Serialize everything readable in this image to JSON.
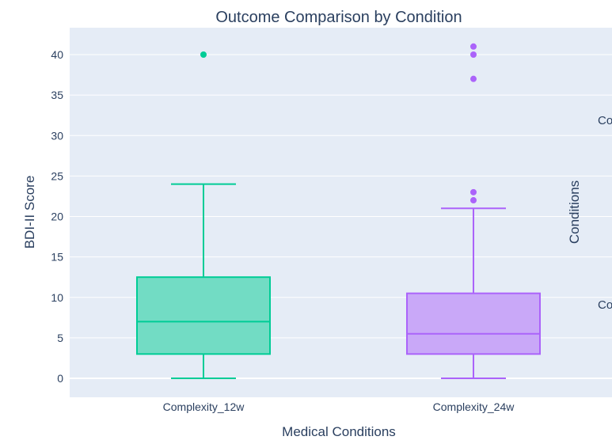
{
  "chart_data": {
    "type": "box",
    "title": "Outcome Comparison by Condition",
    "xlabel": "Medical Conditions",
    "ylabel": "BDI-II Score",
    "ylim": [
      -2.5,
      43.5
    ],
    "yticks": [
      0,
      5,
      10,
      15,
      20,
      25,
      30,
      35,
      40
    ],
    "grid": true,
    "categories": [
      "Complexity_12w",
      "Complexity_24w"
    ],
    "series": [
      {
        "category": "Complexity_12w",
        "color": "#00cc96",
        "fill": "#72dcc4",
        "q1": 3,
        "median": 7,
        "q3": 12.5,
        "whisker_low": 0,
        "whisker_high": 24,
        "outliers": [
          40
        ]
      },
      {
        "category": "Complexity_24w",
        "color": "#ab63fa",
        "fill": "#c9a8f8",
        "q1": 3,
        "median": 5.5,
        "q3": 10.5,
        "whisker_low": 0,
        "whisker_high": 21,
        "outliers": [
          22,
          23,
          37,
          40,
          41
        ]
      }
    ],
    "legend": {
      "title": "Conditions",
      "placement": "right (clipped)",
      "items": [
        "Co",
        "Co"
      ]
    }
  }
}
